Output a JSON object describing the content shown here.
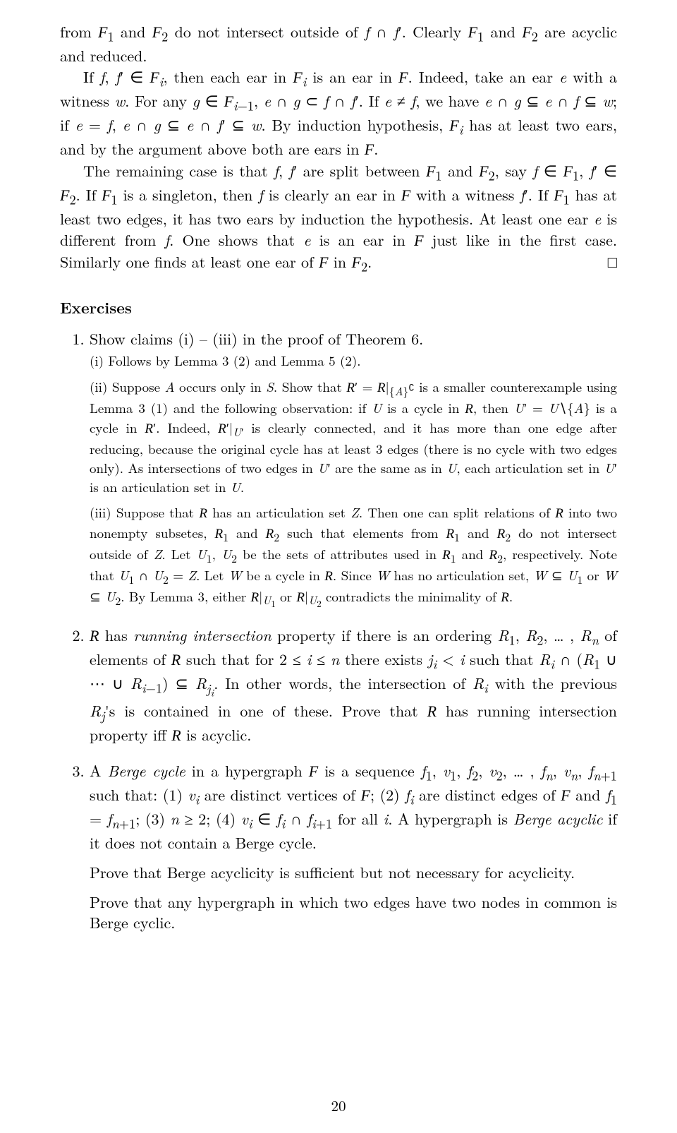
{
  "para1": "from 𝓕₁ and 𝓕₂ do not intersect outside of f ∩ f′. Clearly 𝓕₁ and 𝓕₂ are acyclic and reduced.",
  "para2": "If f, f′ ∈ 𝓕ᵢ, then each ear in 𝓕ᵢ is an ear in 𝓕. Indeed, take an ear e with a witness w. For any g ∈ 𝓕ᵢ₋₁, e ∩ g ⊂ f ∩ f′. If e ≠ f, we have e ∩ g ⊆ e ∩ f ⊆ w; if e = f, e ∩ g ⊆ e ∩ f′ ⊆ w. By induction hypothesis, 𝓕ᵢ has at least two ears, and by the argument above both are ears in 𝓕.",
  "para3": "The remaining case is that f, f′ are split between 𝓕₁ and 𝓕₂, say f ∈ 𝓕₁, f′ ∈ 𝓕₂. If 𝓕₁ is a singleton, then f is clearly an ear in 𝓕 with a witness f′. If 𝓕₁ has at least two edges, it has two ears by induction the hypothesis. At least one ear e is different from f. One shows that e is an ear in 𝓕 just like in the first case. Similarly one finds at least one ear of 𝓕 in 𝓕₂.",
  "qed": "□",
  "exercises_title": "Exercises",
  "ex1_main": "Show claims (i) – (iii) in the proof of Theorem 6.",
  "ex1_i": "(i) Follows by Lemma 3 (2) and Lemma 5 (2).",
  "ex1_ii": "(ii) Suppose A occurs only in S. Show that 𝓡′ = 𝓡|_{ {A}ᶜ } is a smaller counterexample using Lemma 3 (1) and the following observation: if U is a cycle in 𝓡, then U′ = U∖{A} is a cycle in 𝓡′. Indeed, 𝓡′|_{U′} is clearly connected, and it has more than one edge after reducing, because the original cycle has at least 3 edges (there is no cycle with two edges only). As intersections of two edges in U′ are the same as in U, each articulation set in U′ is an articulation set in U.",
  "ex1_iii": "(iii) Suppose that 𝓡 has an articulation set Z. Then one can split relations of 𝓡 into two nonempty subsetes, 𝓡₁ and 𝓡₂ such that elements from 𝓡₁ and 𝓡₂ do not intersect outside of Z. Let U₁, U₂ be the sets of attributes used in 𝓡₁ and 𝓡₂, respectively. Note that U₁ ∩ U₂ = Z. Let W be a cycle in 𝓡. Since W has no articulation set, W ⊆ U₁ or W ⊆ U₂. By Lemma 3, either 𝓡|_{U₁} or 𝓡|_{U₂} contradicts the minimality of 𝓡.",
  "ex2": "𝓡 has running intersection property if there is an ordering R₁, R₂, … , Rₙ of elements of 𝓡 such that for 2 ≤ i ≤ n there exists jᵢ < i such that Rᵢ ∩ (R₁ ∪ ⋯ ∪ Rᵢ₋₁) ⊆ R_{jᵢ}. In other words, the intersection of Rᵢ with the previous Rⱼ's is contained in one of these. Prove that 𝓡 has running intersection property iff 𝓡 is acyclic.",
  "ex3_p1": "A Berge cycle in a hypergraph 𝓕 is a sequence f₁, v₁, f₂, v₂, … , fₙ, vₙ, fₙ₊₁ such that: (1) vᵢ are distinct vertices of 𝓕; (2) fᵢ are distinct edges of 𝓕 and f₁ = fₙ₊₁; (3) n ≥ 2; (4) vᵢ ∈ fᵢ ∩ fᵢ₊₁ for all i. A hypergraph is Berge acyclic if it does not contain a Berge cycle.",
  "ex3_p2": "Prove that Berge acyclicity is sufficient but not necessary for acyclicity.",
  "ex3_p3": "Prove that any hypergraph in which two edges have two nodes in common is Berge cyclic.",
  "page_number": "20"
}
